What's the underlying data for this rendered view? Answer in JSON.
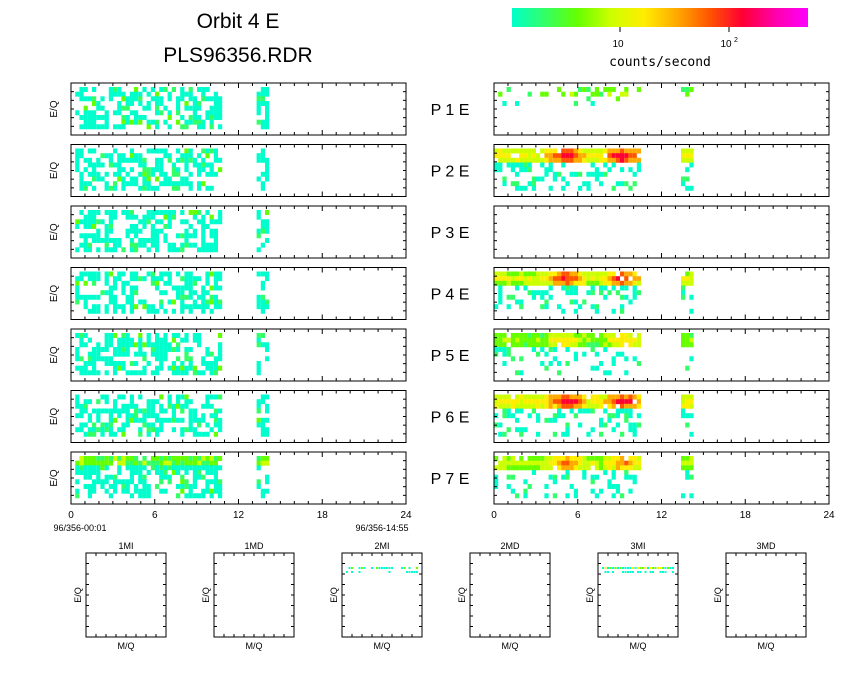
{
  "header": {
    "title": "Orbit  4  E",
    "filename": "PLS96356.RDR"
  },
  "colorbar": {
    "stops": [
      "#00ffcc",
      "#33ff66",
      "#66ff00",
      "#ccff00",
      "#ffee00",
      "#ffaa00",
      "#ff5500",
      "#ff0033",
      "#ff00aa",
      "#ff00ff"
    ],
    "tick_main_1": "10",
    "tick_main_2": "10",
    "tick_sup_2": "2",
    "label": "counts/second"
  },
  "axis_labels": {
    "energy": "E/Q",
    "mass": "M/Q"
  },
  "time_axis": {
    "ticks": [
      "0",
      "6",
      "12",
      "18",
      "24"
    ],
    "start": "96/356-00:01",
    "end": "96/356-14:55"
  },
  "panels": [
    {
      "label": "P  1  E"
    },
    {
      "label": "P  2  E"
    },
    {
      "label": "P  3  E"
    },
    {
      "label": "P  4  E"
    },
    {
      "label": "P  5  E"
    },
    {
      "label": "P  6  E"
    },
    {
      "label": "P  7  E"
    }
  ],
  "small_panels": [
    {
      "title": "1MI"
    },
    {
      "title": "1MD"
    },
    {
      "title": "2MI"
    },
    {
      "title": "2MD"
    },
    {
      "title": "3MI"
    },
    {
      "title": "3MD"
    }
  ],
  "chart_data": {
    "type": "heatmap",
    "x_unit": "hours",
    "xlim": [
      0,
      24
    ],
    "data_extent_hours": [
      0,
      14.9
    ],
    "left_column_bands_hours": [
      [
        0.3,
        10.6
      ],
      [
        13.3,
        14.1
      ]
    ],
    "right_column_bands_hours": [
      [
        0,
        10.3
      ],
      [
        13.4,
        14.3
      ]
    ],
    "right_column_peak_hours": [
      5,
      9.1
    ],
    "color_scale": "log",
    "color_scale_labels": [
      "10",
      "10^2"
    ],
    "small_panels_with_data": [
      "2MI",
      "3MI"
    ]
  }
}
